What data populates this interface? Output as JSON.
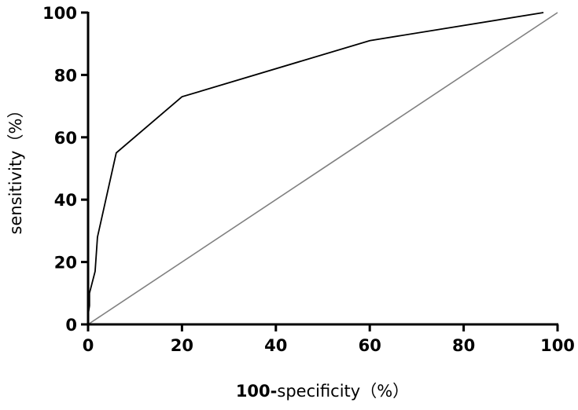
{
  "chart_data": {
    "type": "line",
    "title": "",
    "xlabel_bold": "100-",
    "xlabel_rest": "specificity（%）",
    "ylabel": "sensitivity（%）",
    "xlim": [
      0,
      100
    ],
    "ylim": [
      0,
      100
    ],
    "x_ticks": [
      "0",
      "20",
      "40",
      "60",
      "80",
      "100"
    ],
    "y_ticks": [
      "0",
      "20",
      "40",
      "60",
      "80",
      "100"
    ],
    "grid": false,
    "series": [
      {
        "color": "#000000",
        "points": [
          [
            0,
            0
          ],
          [
            0,
            3
          ],
          [
            0.3,
            6
          ],
          [
            0.3,
            10
          ],
          [
            1.5,
            17
          ],
          [
            2,
            28
          ],
          [
            6,
            55
          ],
          [
            20,
            73
          ],
          [
            60,
            91
          ],
          [
            97,
            100
          ]
        ]
      },
      {
        "color": "#808080",
        "points": [
          [
            0,
            0
          ],
          [
            100,
            100
          ]
        ]
      }
    ]
  }
}
